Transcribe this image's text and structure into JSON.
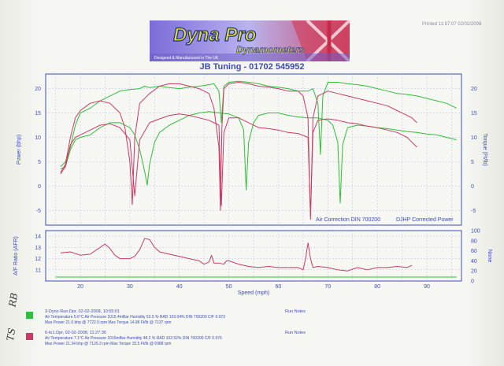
{
  "printed": "Printed 11:57:07  02/02/2008",
  "logo": {
    "brand": "Dyna Pro",
    "sub": "Dynamometers",
    "tagline": "Designed & Manufactured in The UK"
  },
  "company": "JB Tuning - 01702 545952",
  "chart_data": [
    {
      "type": "line",
      "name": "power-torque",
      "xlabel": "Speed (mph)",
      "ylabel": "Power (bhp)",
      "y2label": "Torque (Ft/lb)",
      "xlim": [
        13,
        97
      ],
      "ylim": [
        -8,
        23
      ],
      "y2lim": [
        -8,
        23
      ],
      "yticks": [
        20,
        15,
        10,
        5,
        0,
        -5
      ],
      "y2ticks": [
        20,
        15,
        10,
        5,
        0,
        -5
      ],
      "annotations": [
        "Air Correction DIN 700200",
        "DJHP Corrected Power"
      ],
      "series": [
        {
          "name": "3-Dyno Run.Dpr power",
          "color": "#2fbf3a",
          "x": [
            16,
            17,
            18,
            19,
            20,
            22,
            24,
            26,
            28,
            30,
            32,
            33,
            34,
            36,
            38,
            40,
            42,
            44,
            46,
            47,
            48,
            48.5,
            49,
            50,
            52,
            54,
            56,
            58,
            60,
            62,
            64,
            66,
            67,
            68,
            68.5,
            69,
            70,
            72,
            74,
            76,
            78,
            80,
            82,
            84,
            86,
            88,
            90,
            92,
            94,
            96
          ],
          "y": [
            4.0,
            5.0,
            8.0,
            12.5,
            15.0,
            16.0,
            17.5,
            18.5,
            19.5,
            19.8,
            20.0,
            20.5,
            20.2,
            20.5,
            20.2,
            20.0,
            20.3,
            20.5,
            20.8,
            21.0,
            19.5,
            13.0,
            20.5,
            21.3,
            21.5,
            21.3,
            21.0,
            20.5,
            20.3,
            20.0,
            19.5,
            19.5,
            20.0,
            17.0,
            6.5,
            18.5,
            21.3,
            21.3,
            21.0,
            20.8,
            20.5,
            20.0,
            19.5,
            19.0,
            18.8,
            18.5,
            18.0,
            17.5,
            17.0,
            16.0
          ]
        },
        {
          "name": "3-Dyno Run.Dpr torque",
          "color": "#2fbf3a",
          "x": [
            16,
            17,
            18,
            19,
            20,
            22,
            24,
            26,
            28,
            30,
            31,
            32,
            33,
            33.5,
            34,
            35,
            36,
            38,
            40,
            42,
            44,
            46,
            48,
            50,
            52,
            53,
            53.5,
            54,
            55,
            56,
            58,
            60,
            62,
            64,
            66,
            68,
            70,
            71,
            72,
            72.5,
            73,
            74,
            76,
            78,
            80,
            82,
            84,
            86,
            88,
            90,
            92,
            94,
            96
          ],
          "y": [
            3.5,
            4.0,
            7.5,
            9.5,
            10.0,
            10.5,
            12.0,
            13.0,
            13.0,
            12.0,
            10.5,
            7.5,
            3.0,
            0.2,
            4.5,
            9.0,
            11.0,
            12.5,
            13.5,
            14.5,
            15.0,
            15.3,
            15.0,
            14.8,
            14.0,
            11.5,
            -0.8,
            9.0,
            13.0,
            14.5,
            15.0,
            15.0,
            14.5,
            14.2,
            14.0,
            14.0,
            13.5,
            12.5,
            9.0,
            -3.5,
            8.5,
            12.0,
            12.5,
            12.3,
            12.0,
            11.8,
            11.5,
            11.2,
            11.0,
            10.7,
            10.5,
            10.0,
            9.5
          ]
        },
        {
          "name": "6-to1.Dpr power",
          "color": "#cc3a66",
          "x": [
            16,
            17,
            18,
            19,
            20,
            22,
            24,
            26,
            28,
            29,
            30,
            30.5,
            31,
            32,
            34,
            36,
            38,
            40,
            42,
            44,
            46,
            47,
            48,
            48.3,
            48.6,
            49,
            50,
            52,
            54,
            56,
            58,
            60,
            62,
            64,
            65,
            66,
            66.5,
            67,
            68,
            70,
            72,
            74,
            76,
            78,
            80,
            82,
            84,
            86,
            87,
            88
          ],
          "y": [
            2.8,
            4.5,
            10.0,
            14.0,
            15.5,
            17.0,
            17.5,
            17.0,
            15.0,
            12.0,
            5.0,
            -3.8,
            10.0,
            17.0,
            19.0,
            20.5,
            21.0,
            21.0,
            20.5,
            20.0,
            19.0,
            16.0,
            8.0,
            -5.0,
            12.0,
            20.0,
            21.0,
            21.3,
            21.0,
            20.5,
            20.3,
            20.0,
            19.5,
            19.5,
            18.5,
            14.0,
            -6.8,
            14.0,
            18.5,
            19.5,
            19.0,
            18.5,
            18.0,
            17.5,
            17.0,
            16.5,
            15.5,
            14.5,
            14.0,
            13.0
          ]
        },
        {
          "name": "6-to1.Dpr torque",
          "color": "#cc3a66",
          "x": [
            16,
            17,
            18,
            19,
            20,
            22,
            24,
            26,
            28,
            30,
            31,
            32,
            34,
            36,
            38,
            40,
            42,
            44,
            46,
            48,
            48.5,
            49,
            50,
            52,
            54,
            56,
            58,
            60,
            62,
            64,
            66,
            66.5,
            67,
            68,
            70,
            72,
            74,
            76,
            78,
            80,
            82,
            84,
            86,
            87,
            88
          ],
          "y": [
            2.5,
            4.0,
            8.5,
            10.0,
            10.5,
            11.5,
            12.5,
            12.8,
            12.0,
            9.5,
            -2.0,
            9.5,
            13.0,
            13.8,
            14.5,
            14.8,
            14.5,
            14.0,
            13.5,
            12.5,
            -4.0,
            11.0,
            14.0,
            14.0,
            13.0,
            12.0,
            11.8,
            11.5,
            11.0,
            10.8,
            10.0,
            -6.0,
            11.0,
            13.5,
            13.8,
            13.5,
            13.0,
            12.8,
            12.3,
            12.0,
            11.5,
            11.0,
            10.0,
            9.0,
            8.0
          ]
        }
      ]
    },
    {
      "type": "line",
      "name": "afr",
      "xlabel": "Speed (mph)",
      "ylabel": "A/F Ratio (AFR)",
      "y2label": "None",
      "xlim": [
        13,
        97
      ],
      "ylim": [
        10,
        14.5
      ],
      "y2lim": [
        0,
        100
      ],
      "yticks": [
        14,
        13,
        12,
        11
      ],
      "y2ticks": [
        100,
        80,
        60,
        40,
        20,
        0
      ],
      "xticks": [
        20,
        30,
        40,
        50,
        60,
        70,
        80,
        90
      ],
      "series": [
        {
          "name": "3-Dyno Run.Dpr AFR",
          "color": "#2fbf3a",
          "x": [
            15,
            96
          ],
          "y": [
            10.35,
            10.35
          ]
        },
        {
          "name": "6-to1.Dpr AFR",
          "color": "#cc3a66",
          "x": [
            16,
            18,
            20,
            22,
            24,
            25,
            26,
            27,
            28,
            30,
            31,
            32,
            33,
            34,
            35,
            36,
            38,
            40,
            42,
            44,
            45,
            46,
            46.5,
            47,
            48,
            49,
            49.5,
            50,
            52,
            54,
            56,
            58,
            60,
            62,
            64,
            65,
            65.5,
            66,
            66.5,
            67,
            68,
            70,
            72,
            74,
            76,
            78,
            80,
            82,
            84,
            86,
            87
          ],
          "y": [
            12.5,
            12.6,
            12.3,
            12.4,
            13.0,
            13.3,
            12.9,
            12.3,
            12.0,
            12.0,
            12.2,
            12.8,
            13.8,
            13.7,
            13.0,
            12.6,
            12.4,
            12.2,
            12.0,
            11.8,
            11.5,
            11.7,
            12.3,
            11.6,
            11.6,
            11.5,
            11.8,
            11.8,
            11.5,
            11.3,
            11.2,
            11.3,
            11.2,
            11.2,
            11.2,
            11.0,
            12.0,
            13.4,
            12.0,
            11.2,
            11.3,
            11.2,
            11.0,
            10.9,
            11.2,
            11.0,
            11.2,
            11.2,
            11.3,
            11.2,
            11.4
          ]
        }
      ]
    }
  ],
  "runs": [
    {
      "title": "3-Dyno Run.Dpr,     02-02-2008,   10:55:01",
      "line1": "Air Temperature 5.6°C    Air Pressure 1015.4mBar    Humidity 53.5 %    RAD 103.04%    DIN 700200  C/F 0.973",
      "line2": "Max Power 21.6 bhp @ 7722.5 rpm    Max Torque 14.98 Ft/lb @ 7137 rpm",
      "notes": "Run Notes",
      "color": "#2fbf3a"
    },
    {
      "title": "6-to1.Dpr,     02-02-2008,   11:27:36",
      "line1": "Air Temperature 7.1°C    Air Pressure 1015mBar    Humidity 48.2 %    RAD 102.52%    DIN 700200  C/F 0.976",
      "line2": "Max Power 21.34 bhp @ 7126.3 rpm    Max Torque 15.5 Ft/lb @ 6988 rpm",
      "notes": "Run Notes",
      "color": "#cc3a66"
    }
  ],
  "handwriting": {
    "top": "RB",
    "bottom": "TS"
  }
}
